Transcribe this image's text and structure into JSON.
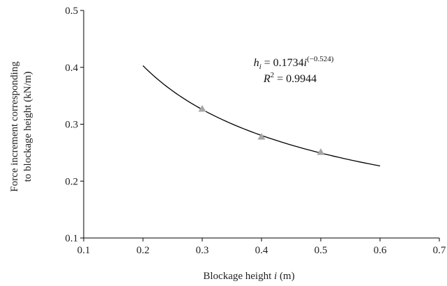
{
  "chart_data": {
    "type": "scatter",
    "xlabel": {
      "prefix": "Blockage height ",
      "var": "i",
      "suffix": " (m)"
    },
    "ylabel_lines": [
      "Force increment corresponding",
      "to blockage height (kN/m)"
    ],
    "xlim": [
      0.1,
      0.7
    ],
    "ylim": [
      0.1,
      0.5
    ],
    "x_ticks": [
      0.1,
      0.2,
      0.3,
      0.4,
      0.5,
      0.6,
      0.7
    ],
    "x_tick_labels": [
      "0.1",
      "0.2",
      "0.3",
      "0.4",
      "0.5",
      "0.6",
      "0.7"
    ],
    "y_ticks": [
      0.1,
      0.2,
      0.3,
      0.4,
      0.5
    ],
    "y_tick_labels": [
      "0.1",
      "0.2",
      "0.3",
      "0.4",
      "0.5"
    ],
    "grid": false,
    "legend": "none",
    "series": [
      {
        "kind": "points",
        "marker": "triangle",
        "color": "#a6a6a6",
        "x": [
          0.3,
          0.4,
          0.5
        ],
        "y": [
          0.327,
          0.278,
          0.251
        ]
      },
      {
        "kind": "trendline",
        "model": "power",
        "coefficient": 0.1734,
        "exponent": -0.524,
        "x_range": [
          0.2,
          0.6
        ],
        "color": "#000000"
      }
    ],
    "annotation": {
      "var": "h",
      "sub": "i",
      "eq": " = 0.1734",
      "x_var": "i",
      "exp": "(−0.524)",
      "r2_var": "R",
      "r2_sup": "2",
      "r2_eq": " = 0.9944"
    }
  }
}
